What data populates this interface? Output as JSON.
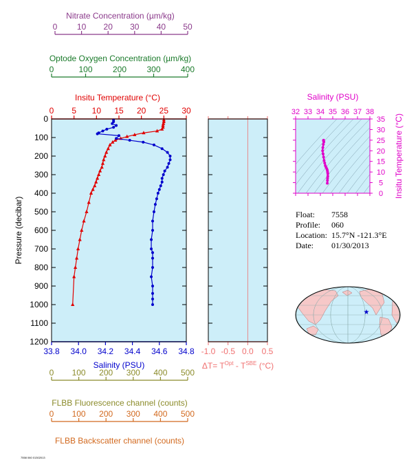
{
  "colors": {
    "nitrate": "#8b3a8b",
    "oxygen": "#1a7a2a",
    "temperature": "#e00000",
    "salinity": "#0000cc",
    "delta": "#f07070",
    "ts_magenta": "#e000c8",
    "fluorescence": "#8b8b2a",
    "backscatter": "#d2691e",
    "plot_bg": "#cdeef9",
    "land": "#f6c8c8"
  },
  "axes_text": {
    "nitrate_title": "Nitrate Concentration (µm/kg)",
    "nitrate_ticks": [
      "0",
      "10",
      "20",
      "30",
      "40",
      "50"
    ],
    "oxygen_title": "Optode Oxygen Concentration (µm/kg)",
    "oxygen_ticks": [
      "0",
      "100",
      "200",
      "300",
      "400"
    ],
    "temperature_title": "Insitu Temperature (°C)",
    "temperature_ticks": [
      "0",
      "5",
      "10",
      "15",
      "20",
      "25",
      "30"
    ],
    "pressure_title": "Pressure (decibar)",
    "pressure_ticks": [
      "0",
      "100",
      "200",
      "300",
      "400",
      "500",
      "600",
      "700",
      "800",
      "900",
      "1000",
      "1100",
      "1200"
    ],
    "salinity_title": "Salinity (PSU)",
    "salinity_ticks": [
      "33.8",
      "34.0",
      "34.2",
      "34.4",
      "34.6",
      "34.8"
    ],
    "delta_ticks": [
      "-1.0",
      "-0.5",
      "0.0",
      "0.5"
    ],
    "delta_title_main": "ΔT= T",
    "delta_title_sup1": "Opt",
    "delta_title_mid": " - T",
    "delta_title_sup2": "SBE",
    "delta_title_end": " (°C)",
    "fluorescence_title": "FLBB Fluorescence channel (counts)",
    "fluorescence_ticks": [
      "0",
      "100",
      "200",
      "300",
      "400",
      "500"
    ],
    "backscatter_title": "FLBB Backscatter channel (counts)",
    "backscatter_ticks": [
      "0",
      "100",
      "200",
      "300",
      "400",
      "500"
    ],
    "ts_title": "Salinity (PSU)",
    "ts_sal_ticks": [
      "32",
      "33",
      "34",
      "35",
      "36",
      "37",
      "38"
    ],
    "ts_temp_title": "Insitu Temperature (°C)",
    "ts_temp_ticks": [
      "0",
      "5",
      "10",
      "15",
      "20",
      "25",
      "30",
      "35"
    ]
  },
  "info": {
    "float_label": "Float:",
    "float_value": "7558",
    "profile_label": "Profile:",
    "profile_value": "060",
    "location_label": "Location:",
    "location_value": "15.7°N  -121.3°E",
    "date_label": "Date:",
    "date_value": "01/30/2013"
  },
  "footer_text": "7558 060 01302013",
  "chart_data": [
    {
      "type": "line",
      "name": "profile",
      "y_axis": "Pressure (decibar)",
      "ylim": [
        1200,
        0
      ],
      "temperature_xlim": [
        0,
        30
      ],
      "salinity_xlim": [
        33.8,
        34.8
      ],
      "temperature_series": {
        "x": [
          25.0,
          25.0,
          24.9,
          24.8,
          24.8,
          24.6,
          23.5,
          20.5,
          18.5,
          16.8,
          15.4,
          14.2,
          13.6,
          13.0,
          12.6,
          12.2,
          11.9,
          11.6,
          11.4,
          11.2,
          10.8,
          10.5,
          10.2,
          9.9,
          9.6,
          9.2,
          8.8,
          8.3,
          7.8,
          7.2,
          6.7,
          6.3,
          5.9,
          5.6,
          5.3,
          5.0,
          4.7
        ],
        "y": [
          5,
          15,
          25,
          35,
          45,
          55,
          65,
          75,
          85,
          95,
          105,
          115,
          125,
          140,
          160,
          180,
          200,
          220,
          240,
          260,
          280,
          300,
          320,
          340,
          360,
          380,
          400,
          450,
          500,
          550,
          600,
          650,
          700,
          750,
          800,
          850,
          1000
        ]
      },
      "salinity_series": {
        "x": [
          34.26,
          34.26,
          34.25,
          34.28,
          34.26,
          34.21,
          34.18,
          34.15,
          34.14,
          34.3,
          34.28,
          34.38,
          34.48,
          34.56,
          34.62,
          34.66,
          34.68,
          34.68,
          34.67,
          34.66,
          34.64,
          34.63,
          34.62,
          34.62,
          34.61,
          34.6,
          34.59,
          34.58,
          34.57,
          34.56,
          34.55,
          34.55,
          34.54,
          34.54,
          34.55,
          34.55,
          34.55,
          34.54,
          34.55,
          34.55,
          34.55,
          34.55
        ],
        "y": [
          5,
          15,
          25,
          35,
          45,
          55,
          65,
          75,
          80,
          90,
          105,
          115,
          125,
          140,
          160,
          180,
          200,
          220,
          240,
          260,
          280,
          300,
          320,
          340,
          360,
          380,
          400,
          430,
          460,
          500,
          550,
          600,
          650,
          700,
          720,
          750,
          800,
          850,
          900,
          940,
          970,
          1000
        ]
      }
    },
    {
      "type": "line",
      "name": "delta_t",
      "xlabel": "ΔT= TOpt - TSBE (°C)",
      "xlim": [
        -1.0,
        0.5
      ],
      "ylim": [
        1200,
        0
      ],
      "x": [],
      "y": []
    },
    {
      "type": "scatter",
      "name": "ts_diagram",
      "xlabel": "Salinity (PSU)",
      "ylabel": "Insitu Temperature (°C)",
      "xlim": [
        32,
        38
      ],
      "ylim": [
        0,
        35
      ],
      "x": [
        34.26,
        34.25,
        34.28,
        34.24,
        34.2,
        34.18,
        34.22,
        34.26,
        34.3,
        34.35,
        34.4,
        34.46,
        34.52,
        34.56,
        34.58,
        34.6,
        34.6,
        34.58,
        34.57,
        34.56
      ],
      "y": [
        25.0,
        24.8,
        24.2,
        23.0,
        21.5,
        20.0,
        18.5,
        17.0,
        15.4,
        14.2,
        13.0,
        12.2,
        11.5,
        10.8,
        10.0,
        9.2,
        8.0,
        7.0,
        6.0,
        4.7
      ]
    },
    {
      "type": "scatter",
      "name": "location_map",
      "x": [
        -121.3
      ],
      "y": [
        15.7
      ]
    }
  ]
}
